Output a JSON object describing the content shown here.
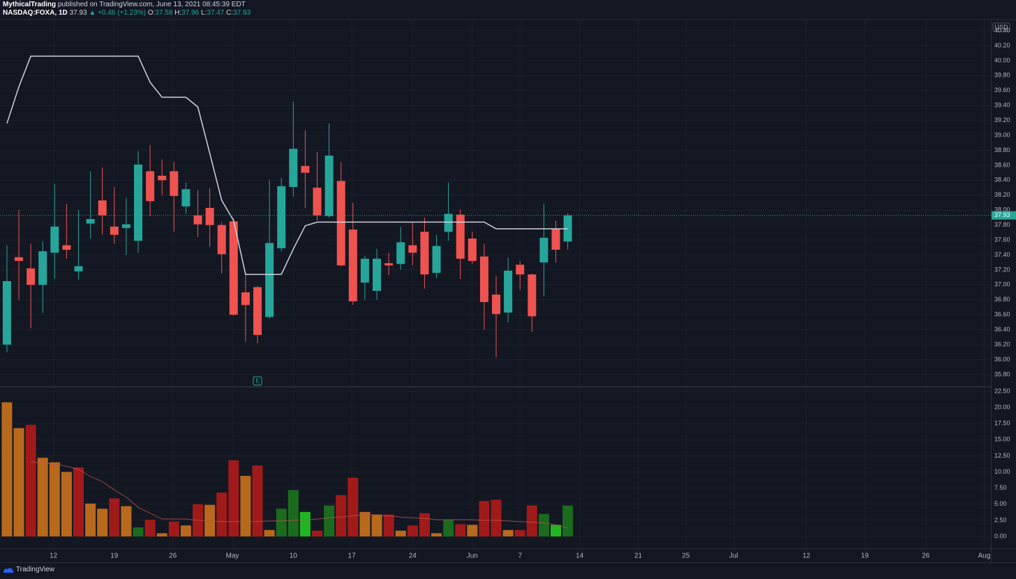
{
  "header": {
    "publisher": "MythicalTrading",
    "published": "published on TradingView.com, June 13, 2021 08:45:39 EDT",
    "symbol": "NASDAQ:FOXA, 1D",
    "last": 37.93,
    "change": "▲ +0.46 (+1.23%)",
    "o_label": "O:",
    "o": 37.58,
    "h_label": "H:",
    "h": 37.96,
    "l_label": "L:",
    "l": 37.47,
    "c_label": "C:",
    "c": 37.93
  },
  "footer": "TradingView",
  "chart_data": [
    {
      "type": "candlestick",
      "currency": "USD",
      "up_color": "#26a69a",
      "down_color": "#ef5350",
      "open": [
        36.2,
        37.37,
        37.22,
        37.0,
        37.43,
        37.53,
        37.18,
        37.82,
        38.13,
        37.78,
        37.76,
        37.59,
        38.52,
        38.46,
        38.52,
        38.05,
        37.93,
        38.03,
        37.8,
        37.85,
        36.9,
        36.97,
        36.57,
        37.49,
        38.31,
        38.59,
        38.3,
        37.92,
        38.39,
        37.74,
        37.03,
        36.92,
        37.29,
        37.28,
        37.53,
        37.71,
        37.16,
        37.71,
        37.94,
        37.62,
        37.38,
        36.87,
        36.63,
        37.27,
        37.14,
        37.3,
        37.75,
        37.58
      ],
      "high": [
        37.53,
        38.0,
        37.55,
        37.58,
        38.35,
        38.08,
        38.0,
        38.52,
        38.57,
        38.31,
        38.17,
        38.79,
        38.87,
        38.68,
        38.64,
        38.37,
        38.27,
        38.29,
        37.84,
        37.89,
        37.15,
        36.98,
        38.4,
        38.43,
        39.45,
        39.07,
        38.78,
        39.16,
        38.64,
        38.1,
        37.39,
        37.48,
        37.43,
        37.78,
        37.84,
        37.9,
        37.67,
        38.37,
        38.01,
        37.71,
        37.55,
        37.12,
        37.36,
        37.32,
        37.15,
        38.08,
        37.86,
        37.96
      ],
      "low": [
        36.1,
        36.8,
        36.42,
        36.62,
        37.08,
        37.35,
        37.07,
        37.62,
        37.67,
        37.55,
        37.4,
        37.43,
        37.92,
        38.2,
        37.71,
        37.95,
        37.64,
        37.51,
        37.15,
        36.59,
        36.24,
        36.22,
        36.55,
        37.45,
        38.18,
        38.03,
        37.86,
        37.9,
        37.25,
        36.73,
        36.8,
        36.8,
        37.13,
        37.2,
        37.26,
        36.95,
        37.09,
        37.59,
        37.08,
        37.28,
        36.4,
        36.03,
        36.5,
        36.93,
        36.37,
        36.85,
        37.3,
        37.47
      ],
      "close": [
        37.05,
        37.32,
        37.0,
        37.45,
        37.78,
        37.47,
        37.25,
        37.88,
        37.93,
        37.67,
        37.81,
        38.61,
        38.12,
        38.4,
        38.19,
        38.28,
        37.81,
        37.8,
        37.41,
        36.6,
        36.73,
        36.33,
        37.56,
        38.32,
        38.82,
        38.5,
        37.93,
        38.73,
        37.26,
        36.78,
        37.35,
        37.35,
        37.26,
        37.57,
        37.43,
        37.14,
        37.52,
        37.95,
        37.35,
        37.32,
        36.77,
        36.61,
        37.19,
        37.14,
        36.58,
        37.63,
        37.47,
        37.93
      ],
      "line_color": "#d1d4dc",
      "line_values": [
        39.16,
        39.65,
        40.06,
        40.06,
        40.06,
        40.06,
        40.06,
        40.06,
        40.06,
        40.06,
        40.06,
        40.06,
        39.71,
        39.51,
        39.51,
        39.51,
        39.38,
        38.76,
        38.13,
        37.86,
        37.14,
        37.14,
        37.14,
        37.14,
        37.48,
        37.79,
        37.84,
        37.84,
        37.84,
        37.84,
        37.84,
        37.84,
        37.84,
        37.84,
        37.84,
        37.84,
        37.84,
        37.84,
        37.84,
        37.84,
        37.84,
        37.75,
        37.75,
        37.75,
        37.75,
        37.75,
        37.75,
        37.75
      ],
      "annotation": {
        "text": "E",
        "x": 21
      },
      "ylim": [
        35.65,
        40.55
      ],
      "yticks": [
        {
          "value": 35.8,
          "label": "35.80"
        },
        {
          "value": 36.0,
          "label": "36.00"
        },
        {
          "value": 36.2,
          "label": "36.20"
        },
        {
          "value": 36.4,
          "label": "36.40"
        },
        {
          "value": 36.6,
          "label": "36.60"
        },
        {
          "value": 36.8,
          "label": "36.80"
        },
        {
          "value": 37.0,
          "label": "37.00"
        },
        {
          "value": 37.2,
          "label": "37.20"
        },
        {
          "value": 37.4,
          "label": "37.40"
        },
        {
          "value": 37.6,
          "label": "37.60"
        },
        {
          "value": 37.8,
          "label": "37.80"
        },
        {
          "value": 38.0,
          "label": "38.00"
        },
        {
          "value": 38.2,
          "label": "38.20"
        },
        {
          "value": 38.4,
          "label": "38.40"
        },
        {
          "value": 38.6,
          "label": "38.60"
        },
        {
          "value": 38.8,
          "label": "38.80"
        },
        {
          "value": 39.0,
          "label": "39.00"
        },
        {
          "value": 39.2,
          "label": "39.20"
        },
        {
          "value": 39.4,
          "label": "39.40"
        },
        {
          "value": 39.6,
          "label": "39.60"
        },
        {
          "value": 39.8,
          "label": "39.80"
        },
        {
          "value": 40.0,
          "label": "40.00"
        },
        {
          "value": 40.2,
          "label": "40.20"
        },
        {
          "value": 40.4,
          "label": "40.40"
        }
      ],
      "grid": true
    },
    {
      "type": "bar",
      "values": [
        20.8,
        16.8,
        17.3,
        12.2,
        11.5,
        10.0,
        10.7,
        5.1,
        4.3,
        5.9,
        4.7,
        1.4,
        2.6,
        0.5,
        2.3,
        1.7,
        5.0,
        4.9,
        6.8,
        11.8,
        9.4,
        11.0,
        1.0,
        4.3,
        7.2,
        3.8,
        0.9,
        4.8,
        6.4,
        9.1,
        3.8,
        3.4,
        3.4,
        0.9,
        1.7,
        3.6,
        0.5,
        2.6,
        1.9,
        1.8,
        5.5,
        5.7,
        1.0,
        1.0,
        4.8,
        3.5,
        1.8,
        4.8
      ],
      "colors": [
        "#b8691c",
        "#b8691c",
        "#a11a1a",
        "#b8691c",
        "#b8691c",
        "#b8691c",
        "#a11a1a",
        "#b8691c",
        "#b8691c",
        "#a11a1a",
        "#b8691c",
        "#1a6b1e",
        "#a11a1a",
        "#b8691c",
        "#a11a1a",
        "#b8691c",
        "#a11a1a",
        "#b8691c",
        "#a11a1a",
        "#a11a1a",
        "#b8691c",
        "#a11a1a",
        "#b8691c",
        "#1a6b1e",
        "#1a6b1e",
        "#22b522",
        "#a11a1a",
        "#1a6b1e",
        "#a11a1a",
        "#a11a1a",
        "#b8691c",
        "#b8691c",
        "#a11a1a",
        "#b8691c",
        "#a11a1a",
        "#a11a1a",
        "#b8691c",
        "#1a6b1e",
        "#a11a1a",
        "#b8691c",
        "#a11a1a",
        "#a11a1a",
        "#b8691c",
        "#a11a1a",
        "#a11a1a",
        "#1a6b1e",
        "#22b522",
        "#1a6b1e"
      ],
      "ma_color": "#c0504d",
      "ma_values": [
        null,
        null,
        11.6,
        11.4,
        11.2,
        10.9,
        10.4,
        9.3,
        8.5,
        7.2,
        6.1,
        4.5,
        3.6,
        2.7,
        2.7,
        2.7,
        2.5,
        2.4,
        2.3,
        2.3,
        2.3,
        2.3,
        2.4,
        2.4,
        2.5,
        2.6,
        2.7,
        2.9,
        3.0,
        3.2,
        3.4,
        3.3,
        3.2,
        3.0,
        2.9,
        2.8,
        2.6,
        2.6,
        2.6,
        2.6,
        2.5,
        2.5,
        2.4,
        2.3,
        2.2,
        2.1,
        1.8,
        1.3
      ],
      "ylim": [
        -1.73,
        23.04
      ],
      "yticks": [
        {
          "value": 0,
          "label": "0.00"
        },
        {
          "value": 2.5,
          "label": "2.50"
        },
        {
          "value": 5,
          "label": "5.00"
        },
        {
          "value": 7.5,
          "label": "7.50"
        },
        {
          "value": 10,
          "label": "10.00"
        },
        {
          "value": 12.5,
          "label": "12.50"
        },
        {
          "value": 15,
          "label": "15.00"
        },
        {
          "value": 17.5,
          "label": "17.50"
        },
        {
          "value": 20,
          "label": "20.00"
        },
        {
          "value": 22.5,
          "label": "22.50"
        }
      ],
      "xlim": [
        -0.58,
        82.46
      ],
      "xticks": [
        {
          "value": 3.9,
          "label": "12"
        },
        {
          "value": 9.0,
          "label": "19"
        },
        {
          "value": 13.9,
          "label": "26"
        },
        {
          "value": 18.9,
          "label": "May"
        },
        {
          "value": 24.0,
          "label": "10"
        },
        {
          "value": 28.9,
          "label": "17"
        },
        {
          "value": 34.0,
          "label": "24"
        },
        {
          "value": 39.0,
          "label": "Jun"
        },
        {
          "value": 43.0,
          "label": "7"
        },
        {
          "value": 48.0,
          "label": "14"
        },
        {
          "value": 52.9,
          "label": "21"
        },
        {
          "value": 56.9,
          "label": "25"
        },
        {
          "value": 60.9,
          "label": "Jul"
        },
        {
          "value": 67.0,
          "label": "12"
        },
        {
          "value": 71.9,
          "label": "19"
        },
        {
          "value": 77.0,
          "label": "26"
        },
        {
          "value": 81.9,
          "label": "Aug"
        }
      ],
      "grid": true
    }
  ]
}
